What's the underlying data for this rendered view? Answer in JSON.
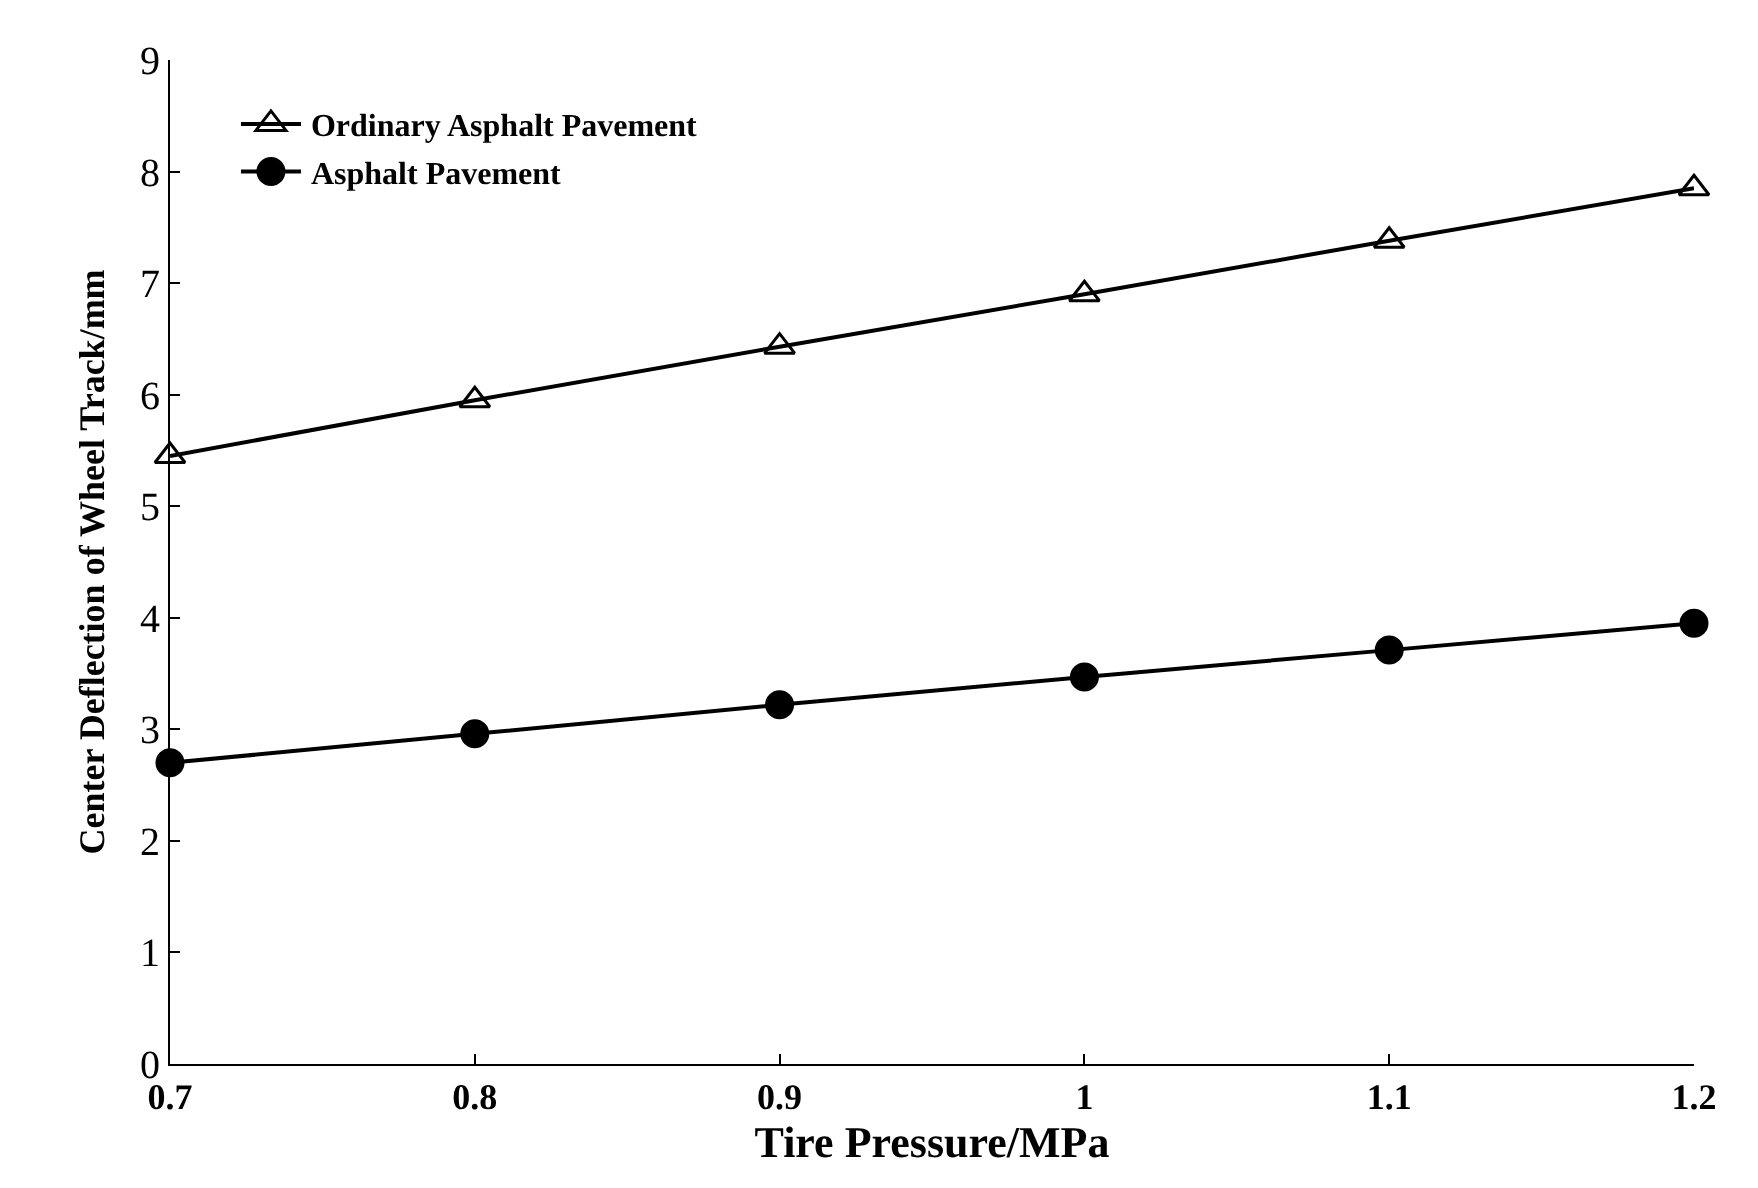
{
  "chart_data": {
    "type": "line",
    "xlabel": "Tire Pressure/MPa",
    "ylabel": "Center Deflection of Wheel Track/mm",
    "x": [
      0.7,
      0.8,
      0.9,
      1.0,
      1.1,
      1.2
    ],
    "series": [
      {
        "name": "Ordinary Asphalt Pavement",
        "color": "#000000",
        "marker": "triangle",
        "values": [
          5.45,
          5.95,
          6.43,
          6.9,
          7.38,
          7.85
        ]
      },
      {
        "name": "Asphalt Pavement",
        "color": "#000000",
        "marker": "circle",
        "values": [
          2.7,
          2.96,
          3.22,
          3.47,
          3.71,
          3.95
        ]
      }
    ],
    "xlim": [
      0.7,
      1.2
    ],
    "xticks": [
      0.7,
      0.8,
      0.9,
      1,
      1.1,
      1.2
    ],
    "ylim": [
      0,
      9
    ],
    "yticks": [
      0,
      1,
      2,
      3,
      4,
      5,
      6,
      7,
      8,
      9
    ],
    "grid": false,
    "legend": "top left",
    "line_style": "solid"
  }
}
